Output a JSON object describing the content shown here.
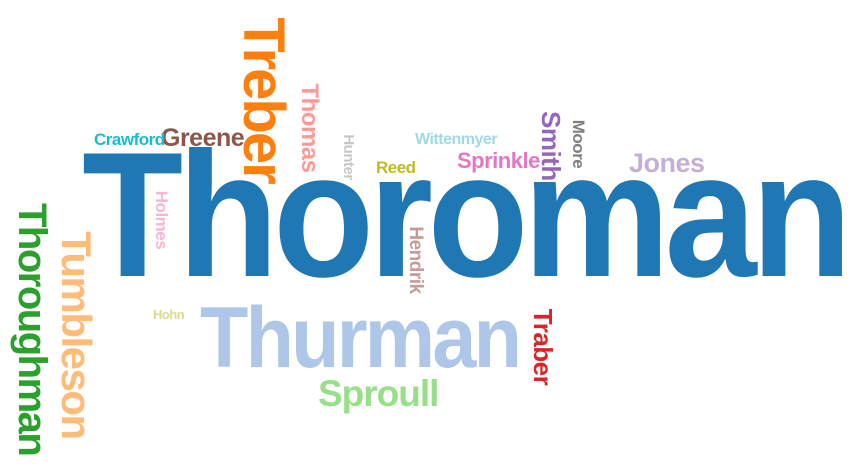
{
  "words": {
    "thoroman": {
      "text": "Thoroman",
      "color": "#1f77b4"
    },
    "thurman": {
      "text": "Thurman",
      "color": "#aec7e8"
    },
    "treber": {
      "text": "Treber",
      "color": "#ff7f0e"
    },
    "tumbleson": {
      "text": "Tumbleson",
      "color": "#ffbb78"
    },
    "thoroughman": {
      "text": "Thoroughman",
      "color": "#2ca02c"
    },
    "sproull": {
      "text": "Sproull",
      "color": "#98df8a"
    },
    "traber": {
      "text": "Traber",
      "color": "#d62728"
    },
    "thomas": {
      "text": "Thomas",
      "color": "#ff9896"
    },
    "smith": {
      "text": "Smith",
      "color": "#9467bd"
    },
    "jones": {
      "text": "Jones",
      "color": "#c5b0d5"
    },
    "greene": {
      "text": "Greene",
      "color": "#8c564b"
    },
    "hendrik": {
      "text": "Hendrik",
      "color": "#c49c94"
    },
    "sprinkle": {
      "text": "Sprinkle",
      "color": "#e377c2"
    },
    "holmes": {
      "text": "Holmes",
      "color": "#f7b6d2"
    },
    "moore": {
      "text": "Moore",
      "color": "#7f7f7f"
    },
    "hunter": {
      "text": "Hunter",
      "color": "#c7c7c7"
    },
    "reed": {
      "text": "Reed",
      "color": "#bcbd22"
    },
    "hohn": {
      "text": "Hohn",
      "color": "#dbdb8d"
    },
    "crawford": {
      "text": "Crawford",
      "color": "#17becf"
    },
    "wittenmyer": {
      "text": "Wittenmyer",
      "color": "#9edae5"
    }
  }
}
